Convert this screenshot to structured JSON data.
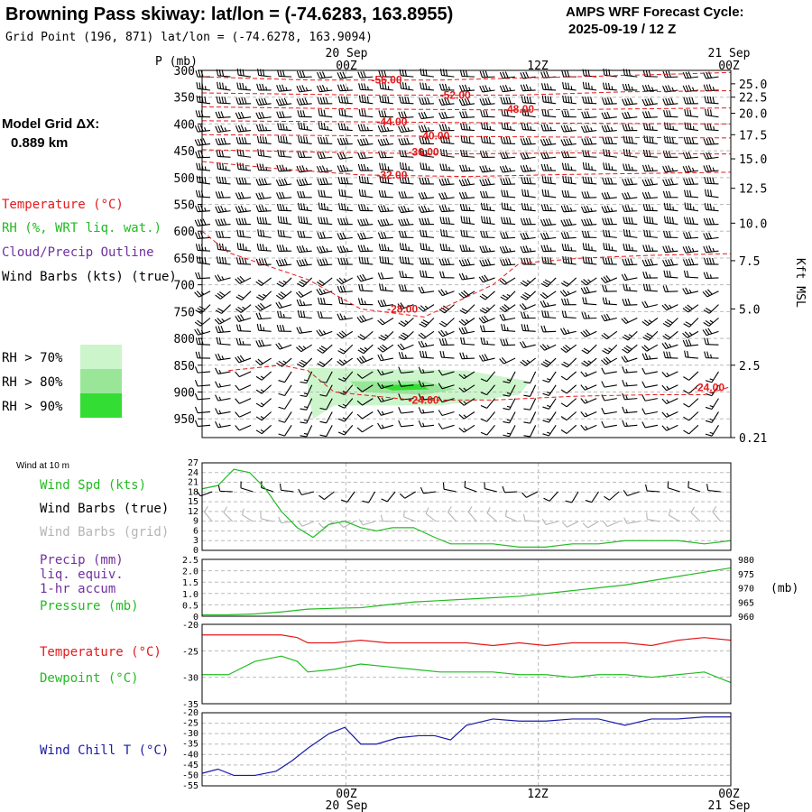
{
  "header": {
    "title": "Browning Pass skiway:  lat/lon = (-74.6283, 163.8955)",
    "grid_point": "Grid Point (196, 871) lat/lon = (-74.6278, 163.9094)",
    "cycle_line1": "AMPS WRF Forecast Cycle:",
    "cycle_line2": "2025-09-19 / 12  Z"
  },
  "time_axis": {
    "top_left_date": "20 Sep",
    "top_right_date": "21 Sep",
    "bottom_mid_date": "20 Sep",
    "bottom_right_date": "21 Sep",
    "tick_labels": [
      "00Z",
      "12Z",
      "00Z"
    ],
    "grid_x_fractions": [
      0.272,
      0.636
    ]
  },
  "left_labels": {
    "model_grid_line1": "Model Grid ΔX:",
    "model_grid_line2": "0.889 km",
    "temperature": "Temperature (°C)",
    "rh": "RH (%, WRT liq. wat.)",
    "cloud": "Cloud/Precip Outline",
    "wind_barbs": "Wind Barbs (kts) (true)",
    "rh70": "RH > 70%",
    "rh80": "RH > 80%",
    "rh90": "RH > 90%"
  },
  "colors": {
    "temperature": "#e41a1c",
    "rh": "#22bb22",
    "cloud": "#7030a0",
    "pressure": "#22bb22",
    "windchill": "#1a1aa8",
    "grid_barbs": "#b5b5b5",
    "rh70": "#ccf5cc",
    "rh80": "#99e699",
    "rh90": "#33dd33"
  },
  "chart_data": [
    {
      "type": "heatmap",
      "id": "cross-section",
      "left_axis_label": "P (mb)",
      "right_axis_label": "Kft MSL",
      "pressure_ticks": [
        300,
        350,
        400,
        450,
        500,
        550,
        600,
        650,
        700,
        750,
        800,
        850,
        900,
        950
      ],
      "ylim_mb": [
        300,
        985
      ],
      "height_ticks": [
        {
          "p": 325,
          "label": "25.0"
        },
        {
          "p": 350,
          "label": "22.5"
        },
        {
          "p": 380,
          "label": "20.0"
        },
        {
          "p": 420,
          "label": "17.5"
        },
        {
          "p": 465,
          "label": "15.0"
        },
        {
          "p": 520,
          "label": "12.5"
        },
        {
          "p": 585,
          "label": "10.0"
        },
        {
          "p": 655,
          "label": "7.5"
        },
        {
          "p": 745,
          "label": "5.0"
        },
        {
          "p": 850,
          "label": "2.5"
        },
        {
          "p": 985,
          "label": "0.21"
        }
      ],
      "isotherms": [
        {
          "label": "-56.00",
          "lx": 0.32,
          "lp": 318,
          "points": [
            [
              0,
              312
            ],
            [
              0.2,
              318
            ],
            [
              0.45,
              318
            ],
            [
              0.7,
              312
            ],
            [
              1,
              304
            ]
          ]
        },
        {
          "label": "-52.00",
          "lx": 0.45,
          "lp": 346,
          "points": [
            [
              0,
              342
            ],
            [
              0.3,
              346
            ],
            [
              0.6,
              346
            ],
            [
              0.8,
              340
            ],
            [
              1,
              338
            ]
          ]
        },
        {
          "label": "-48.00",
          "lx": 0.57,
          "lp": 372,
          "points": [
            [
              0,
              368
            ],
            [
              0.3,
              372
            ],
            [
              0.6,
              374
            ],
            [
              1,
              370
            ]
          ]
        },
        {
          "label": "-44.00",
          "lx": 0.33,
          "lp": 396,
          "points": [
            [
              0,
              394
            ],
            [
              0.3,
              396
            ],
            [
              0.6,
              398
            ],
            [
              1,
              400
            ]
          ]
        },
        {
          "label": "-40.00",
          "lx": 0.41,
          "lp": 422,
          "points": [
            [
              0,
              420
            ],
            [
              0.3,
              422
            ],
            [
              0.6,
              424
            ],
            [
              1,
              426
            ]
          ]
        },
        {
          "label": "-36.00",
          "lx": 0.39,
          "lp": 452,
          "points": [
            [
              0,
              448
            ],
            [
              0.2,
              452
            ],
            [
              0.45,
              456
            ],
            [
              0.7,
              454
            ],
            [
              1,
              456
            ]
          ]
        },
        {
          "label": "-32.00",
          "lx": 0.33,
          "lp": 495,
          "points": [
            [
              0,
              470
            ],
            [
              0.15,
              484
            ],
            [
              0.3,
              495
            ],
            [
              0.5,
              498
            ],
            [
              0.7,
              494
            ],
            [
              1,
              490
            ]
          ]
        },
        {
          "label": "-28.00",
          "lx": 0.35,
          "lp": 745,
          "points": [
            [
              0,
              600
            ],
            [
              0.05,
              640
            ],
            [
              0.2,
              690
            ],
            [
              0.3,
              745
            ],
            [
              0.42,
              760
            ],
            [
              0.55,
              700
            ],
            [
              0.6,
              660
            ],
            [
              0.72,
              650
            ],
            [
              0.85,
              645
            ],
            [
              1,
              642
            ]
          ]
        },
        {
          "label": "-24.00",
          "lx": 0.39,
          "lp": 915,
          "points": [
            [
              0.05,
              860
            ],
            [
              0.15,
              850
            ],
            [
              0.2,
              860
            ],
            [
              0.25,
              900
            ],
            [
              0.4,
              915
            ],
            [
              0.55,
              915
            ],
            [
              0.7,
              908
            ],
            [
              0.85,
              905
            ],
            [
              0.95,
              905
            ],
            [
              1,
              890
            ]
          ]
        },
        {
          "label": "-24.00",
          "lx": 0.93,
          "lp": 892,
          "points": []
        }
      ],
      "rh_regions": [
        {
          "level": "rh70",
          "polygon": [
            [
              0.2,
              855
            ],
            [
              0.5,
              860
            ],
            [
              0.62,
              880
            ],
            [
              0.6,
              905
            ],
            [
              0.45,
              925
            ],
            [
              0.25,
              925
            ],
            [
              0.21,
              950
            ],
            [
              0.2,
              900
            ]
          ]
        },
        {
          "level": "rh80",
          "polygon": [
            [
              0.28,
              880
            ],
            [
              0.42,
              880
            ],
            [
              0.48,
              895
            ],
            [
              0.42,
              905
            ],
            [
              0.3,
              900
            ]
          ]
        },
        {
          "level": "rh90",
          "polygon": [
            [
              0.33,
              888
            ],
            [
              0.41,
              885
            ],
            [
              0.43,
              895
            ],
            [
              0.36,
              897
            ]
          ]
        }
      ],
      "barb_columns": 26,
      "barb_levels_mb": [
        312,
        337,
        362,
        387,
        412,
        437,
        462,
        487,
        512,
        537,
        562,
        587,
        612,
        637,
        662,
        687,
        712,
        737,
        762,
        787,
        812,
        837,
        862,
        887,
        912,
        937,
        962
      ]
    },
    {
      "type": "line",
      "id": "wind-10m",
      "panel_label": "Wind at 10 m",
      "legend": [
        "Wind Spd (kts)",
        "Wind Barbs (true)",
        "Wind Barbs (grid)"
      ],
      "ylim": [
        0,
        27
      ],
      "yticks": [
        0,
        3,
        6,
        9,
        12,
        15,
        18,
        21,
        24,
        27
      ],
      "x": [
        0,
        0.03,
        0.06,
        0.09,
        0.12,
        0.15,
        0.18,
        0.21,
        0.24,
        0.27,
        0.3,
        0.33,
        0.36,
        0.4,
        0.44,
        0.47,
        0.5,
        0.55,
        0.6,
        0.65,
        0.7,
        0.75,
        0.8,
        0.85,
        0.9,
        0.95,
        1
      ],
      "wind_speed": [
        19,
        20,
        25,
        24,
        19,
        12,
        7,
        4,
        8,
        9,
        7,
        6,
        7,
        7,
        4,
        2,
        2,
        2,
        1,
        1,
        2,
        2,
        3,
        3,
        3,
        2,
        3
      ]
    },
    {
      "type": "line",
      "id": "precip-pressure",
      "legend": [
        "Precip (mm)",
        "liq. equiv.",
        "1-hr accum",
        "Pressure (mb)"
      ],
      "ylim_left": [
        0,
        2.5
      ],
      "yticks_left": [
        "0",
        "0.5",
        "1.0",
        "1.5",
        "2.0",
        "2.5"
      ],
      "ylim_right": [
        960,
        980
      ],
      "yticks_right": [
        960,
        965,
        970,
        975,
        980
      ],
      "right_unit": "(mb)",
      "x": [
        0,
        0.05,
        0.1,
        0.15,
        0.2,
        0.25,
        0.3,
        0.35,
        0.4,
        0.45,
        0.5,
        0.55,
        0.6,
        0.65,
        0.7,
        0.75,
        0.8,
        0.85,
        0.9,
        0.95,
        1
      ],
      "pressure": [
        960.5,
        960.5,
        960.8,
        961.5,
        962.5,
        962.8,
        963.0,
        964.0,
        965.0,
        965.5,
        966.0,
        966.5,
        967.0,
        968.0,
        969.0,
        970.0,
        971.0,
        972.5,
        974.0,
        975.5,
        977.0
      ]
    },
    {
      "type": "line",
      "id": "temp-dewpoint",
      "legend": [
        "Temperature (°C)",
        "Dewpoint (°C)"
      ],
      "ylim": [
        -35,
        -20
      ],
      "yticks": [
        -35,
        -30,
        -25,
        -20
      ],
      "x": [
        0,
        0.05,
        0.1,
        0.15,
        0.18,
        0.2,
        0.25,
        0.3,
        0.35,
        0.4,
        0.45,
        0.5,
        0.55,
        0.6,
        0.65,
        0.7,
        0.75,
        0.8,
        0.85,
        0.9,
        0.95,
        1
      ],
      "temperature": [
        -22,
        -22,
        -22,
        -22,
        -22.5,
        -23.5,
        -23.5,
        -23,
        -23.5,
        -23.5,
        -23.5,
        -23.5,
        -24,
        -23.5,
        -24,
        -23.5,
        -23.5,
        -23.5,
        -24,
        -23,
        -22.5,
        -23
      ],
      "dewpoint": [
        -29.5,
        -29.5,
        -27,
        -26,
        -27,
        -29,
        -28.5,
        -27.5,
        -28,
        -28.5,
        -29,
        -29,
        -29,
        -29.5,
        -29.5,
        -30,
        -29.5,
        -29.5,
        -30,
        -29.5,
        -29,
        -31
      ]
    },
    {
      "type": "line",
      "id": "windchill",
      "legend": [
        "Wind Chill T (°C)"
      ],
      "ylim": [
        -55,
        -20
      ],
      "yticks": [
        -55,
        -50,
        -45,
        -40,
        -35,
        -30,
        -25,
        -20
      ],
      "x": [
        0,
        0.03,
        0.06,
        0.1,
        0.14,
        0.17,
        0.2,
        0.24,
        0.27,
        0.3,
        0.33,
        0.37,
        0.41,
        0.44,
        0.47,
        0.5,
        0.55,
        0.6,
        0.65,
        0.7,
        0.75,
        0.8,
        0.85,
        0.9,
        0.95,
        1
      ],
      "windchill": [
        -49,
        -47,
        -50,
        -50,
        -48,
        -43,
        -37,
        -30,
        -27,
        -35,
        -35,
        -32,
        -31,
        -31,
        -33,
        -26,
        -23,
        -24,
        -24,
        -23,
        -23,
        -26,
        -23,
        -23,
        -22,
        -22
      ]
    }
  ]
}
